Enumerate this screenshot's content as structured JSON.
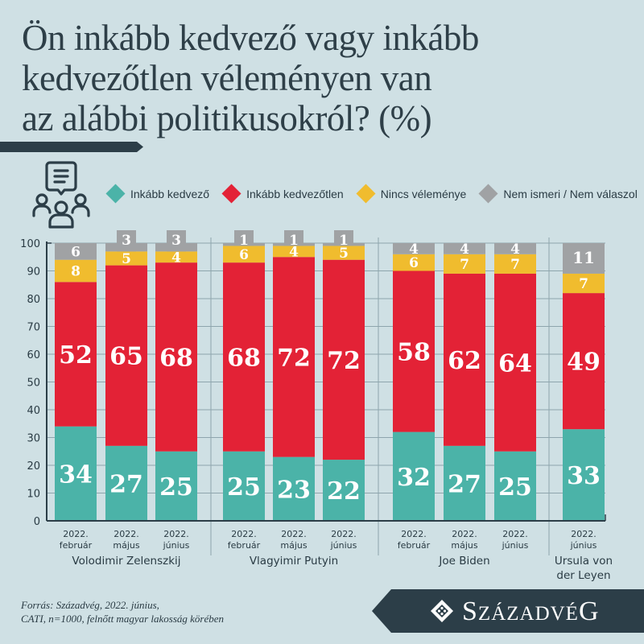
{
  "title": {
    "lines": [
      "Ön inkább kedvező vagy inkább",
      "kedvezőtlen véleményen van",
      "az alábbi politikusokról? (%)"
    ]
  },
  "icons": {
    "legend_icon": "people-discussion-icon",
    "brand_logo": "diamond-ornament-icon"
  },
  "legend": [
    {
      "label": "Inkább kedvező",
      "color": "#4bb3a8"
    },
    {
      "label": "Inkább kedvezőtlen",
      "color": "#e32236"
    },
    {
      "label": "Nincs véleménye",
      "color": "#f0bc2e"
    },
    {
      "label": "Nem ismeri / Nem válaszol",
      "color": "#a0a2a4"
    }
  ],
  "chart_data": {
    "type": "bar",
    "stacked": true,
    "title": "Ön inkább kedvező vagy inkább kedvezőtlen véleményen van az alábbi politikusokról? (%)",
    "ylabel": "",
    "xlabel": "",
    "ylim": [
      0,
      100
    ],
    "yticks": [
      0,
      10,
      20,
      30,
      40,
      50,
      60,
      70,
      80,
      90,
      100
    ],
    "grid": true,
    "legend_position": "top",
    "groups": [
      {
        "name": "Volodimir Zelenszkij",
        "categories": [
          "2022.|február",
          "2022.|május",
          "2022.|június"
        ]
      },
      {
        "name": "Vlagyimir Putyin",
        "categories": [
          "2022.|február",
          "2022.|május",
          "2022.|június"
        ]
      },
      {
        "name": "Joe Biden",
        "categories": [
          "2022.|február",
          "2022.|május",
          "2022.|június"
        ]
      },
      {
        "name": "Ursula von|der Leyen",
        "categories": [
          "2022.|június"
        ]
      }
    ],
    "series": [
      {
        "name": "Inkább kedvező",
        "color": "#4bb3a8",
        "values": [
          34,
          27,
          25,
          25,
          23,
          22,
          32,
          27,
          25,
          33
        ]
      },
      {
        "name": "Inkább kedvezőtlen",
        "color": "#e32236",
        "values": [
          52,
          65,
          68,
          68,
          72,
          72,
          58,
          62,
          64,
          49
        ]
      },
      {
        "name": "Nincs véleménye",
        "color": "#f0bc2e",
        "values": [
          8,
          5,
          4,
          6,
          4,
          5,
          6,
          7,
          7,
          7
        ]
      },
      {
        "name": "Nem ismeri / Nem válaszol",
        "color": "#a0a2a4",
        "values": [
          6,
          3,
          3,
          1,
          1,
          1,
          4,
          4,
          4,
          11
        ]
      }
    ]
  },
  "source": {
    "line1": "Forrás: Századvég, 2022. június,",
    "line2": "CATI, n=1000, felnőtt magyar lakosság körében"
  },
  "brand": {
    "name_parts": [
      "S",
      "zázadvé",
      "G"
    ]
  }
}
